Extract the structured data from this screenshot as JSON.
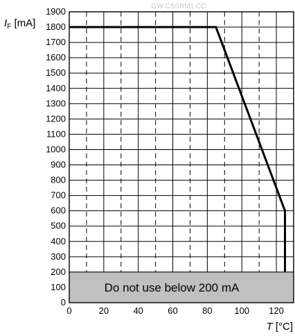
{
  "watermark": "GW CSSRM1.CC",
  "chart_data": {
    "type": "line",
    "ylabel_main": "I",
    "ylabel_sub": "F",
    "ylabel_unit": " [mA]",
    "xlabel_main": "T",
    "xlabel_unit": " [°C]",
    "xlim": [
      0,
      130
    ],
    "ylim": [
      0,
      1900
    ],
    "x_ticks": [
      0,
      20,
      40,
      60,
      80,
      100,
      120
    ],
    "x_tick_labels": [
      "0",
      "20",
      "40",
      "60",
      "80",
      "100",
      "120"
    ],
    "y_ticks": [
      0,
      100,
      200,
      300,
      400,
      500,
      600,
      700,
      800,
      900,
      1000,
      1100,
      1200,
      1300,
      1400,
      1500,
      1600,
      1700,
      1800,
      1900
    ],
    "y_tick_labels": [
      "0",
      "100",
      "200",
      "300",
      "400",
      "500",
      "600",
      "700",
      "800",
      "900",
      "1000",
      "1100",
      "1200",
      "1300",
      "1400",
      "1500",
      "1600",
      "1700",
      "1800",
      "1900"
    ],
    "grid": true,
    "series": [
      {
        "x": [
          0,
          85,
          125,
          125
        ],
        "y": [
          1800,
          1800,
          600,
          200
        ]
      }
    ],
    "restricted_region": {
      "y_from": 0,
      "y_to": 200,
      "label": "Do not use below 200 mA",
      "color": "#c0c0c0"
    }
  }
}
